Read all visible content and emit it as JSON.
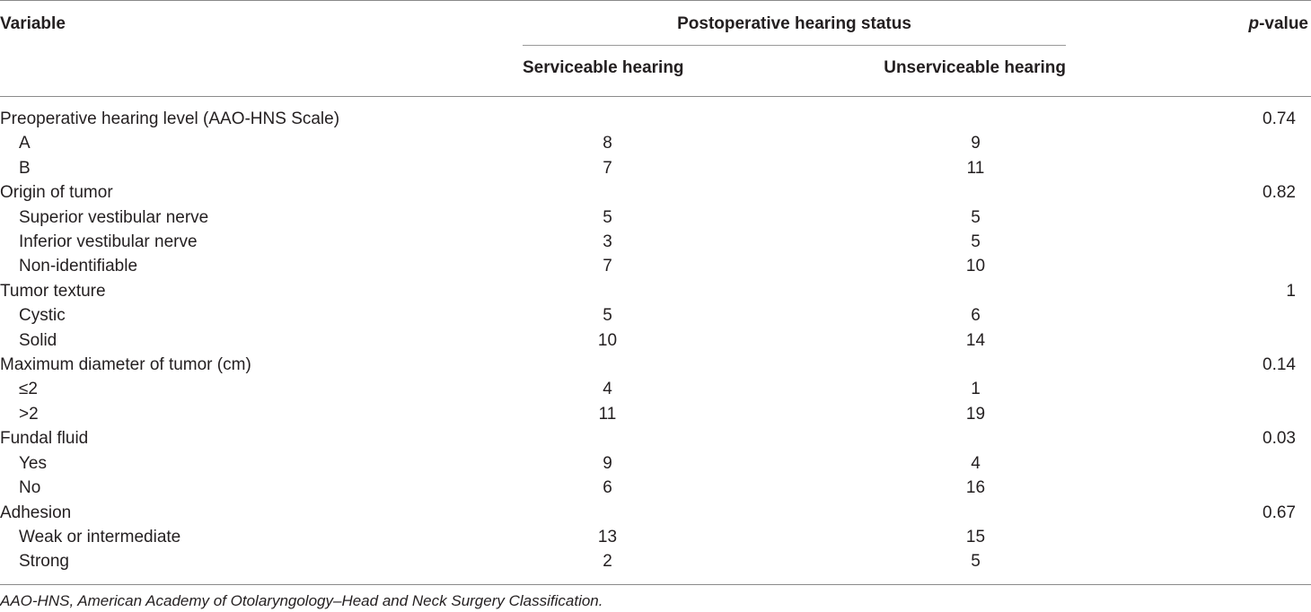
{
  "table": {
    "headers": {
      "variable": "Variable",
      "group": "Postoperative hearing status",
      "serviceable": "Serviceable hearing",
      "unserviceable": "Unserviceable hearing",
      "pvalue_italic": "p",
      "pvalue_rest": "-value"
    },
    "rows": [
      {
        "label": "Preoperative hearing level (AAO-HNS Scale)",
        "serviceable": "",
        "unserviceable": "",
        "p": "0.74"
      },
      {
        "label": "A",
        "serviceable": "8",
        "unserviceable": "9",
        "p": ""
      },
      {
        "label": "B",
        "serviceable": "7",
        "unserviceable": "11",
        "p": ""
      },
      {
        "label": "Origin of tumor",
        "serviceable": "",
        "unserviceable": "",
        "p": "0.82"
      },
      {
        "label": "Superior vestibular nerve",
        "serviceable": "5",
        "unserviceable": "5",
        "p": ""
      },
      {
        "label": "Inferior vestibular nerve",
        "serviceable": "3",
        "unserviceable": "5",
        "p": ""
      },
      {
        "label": "Non-identifiable",
        "serviceable": "7",
        "unserviceable": "10",
        "p": ""
      },
      {
        "label": "Tumor texture",
        "serviceable": "",
        "unserviceable": "",
        "p": "1"
      },
      {
        "label": "Cystic",
        "serviceable": "5",
        "unserviceable": "6",
        "p": ""
      },
      {
        "label": "Solid",
        "serviceable": "10",
        "unserviceable": "14",
        "p": ""
      },
      {
        "label": "Maximum diameter of tumor (cm)",
        "serviceable": "",
        "unserviceable": "",
        "p": "0.14"
      },
      {
        "label": "≤2",
        "serviceable": "4",
        "unserviceable": "1",
        "p": ""
      },
      {
        "label": ">2",
        "serviceable": "11",
        "unserviceable": "19",
        "p": ""
      },
      {
        "label": "Fundal fluid",
        "serviceable": "",
        "unserviceable": "",
        "p": "0.03"
      },
      {
        "label": "Yes",
        "serviceable": "9",
        "unserviceable": "4",
        "p": ""
      },
      {
        "label": "No",
        "serviceable": "6",
        "unserviceable": "16",
        "p": ""
      },
      {
        "label": "Adhesion",
        "serviceable": "",
        "unserviceable": "",
        "p": "0.67"
      },
      {
        "label": "Weak or intermediate",
        "serviceable": "13",
        "unserviceable": "15",
        "p": ""
      },
      {
        "label": "Strong",
        "serviceable": "2",
        "unserviceable": "5",
        "p": ""
      }
    ]
  },
  "footnote": "AAO-HNS, American Academy of Otolaryngology–Head and Neck Surgery Classification."
}
